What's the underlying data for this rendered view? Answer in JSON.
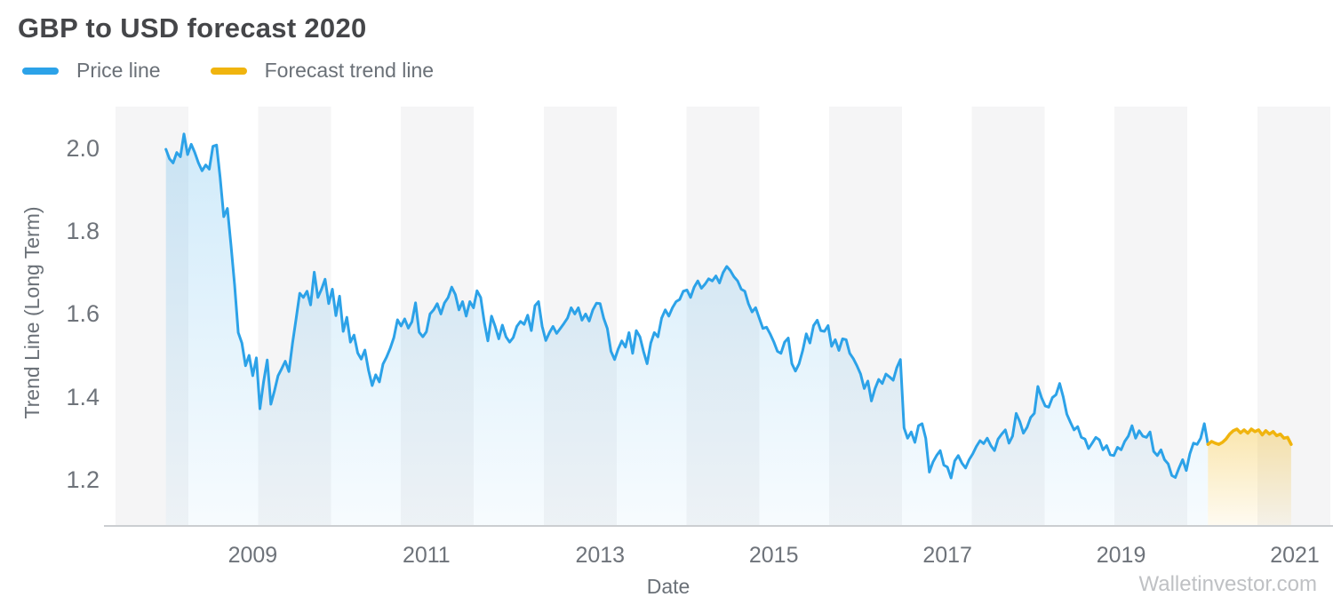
{
  "header": {
    "title": "GBP to USD forecast 2020"
  },
  "legend": [
    {
      "label": "Price line",
      "color": "#2CA2E8"
    },
    {
      "label": "Forecast trend line",
      "color": "#F0B40E"
    }
  ],
  "watermark": "Walletinvestor.com",
  "colors": {
    "price_line": "#2CA2E8",
    "forecast_line": "#F0B40E",
    "band": "#f5f5f6",
    "axis_line": "#cbced1",
    "tick_text": "#6e737a"
  },
  "chart_data": {
    "type": "line",
    "title": "GBP to USD forecast 2020",
    "xlabel": "Date",
    "ylabel": "Trend Line (Long Term)",
    "x_ticks": [
      2009,
      2011,
      2013,
      2015,
      2017,
      2019,
      2021
    ],
    "y_tick_labels": [
      "2.0",
      "1.8",
      "1.6",
      "1.4",
      "1.2"
    ],
    "xlim": [
      2007.42,
      2021.44
    ],
    "ylim": [
      1.088,
      2.101
    ],
    "grid": false,
    "legend_position": "top-left",
    "series": [
      {
        "name": "Price line",
        "color": "#2CA2E8",
        "stroke_width": 3,
        "fill_opacity_top": 0.22,
        "fill_opacity_bottom": 0.04,
        "x_start": 2008.0,
        "x_step": 0.0416667,
        "values": [
          1.998,
          1.975,
          1.965,
          1.99,
          1.98,
          2.035,
          1.985,
          2.01,
          1.99,
          1.965,
          1.946,
          1.96,
          1.95,
          2.005,
          2.008,
          1.93,
          1.835,
          1.855,
          1.765,
          1.67,
          1.555,
          1.53,
          1.475,
          1.5,
          1.451,
          1.494,
          1.371,
          1.436,
          1.489,
          1.382,
          1.414,
          1.451,
          1.468,
          1.486,
          1.461,
          1.53,
          1.59,
          1.65,
          1.64,
          1.655,
          1.622,
          1.701,
          1.64,
          1.66,
          1.684,
          1.625,
          1.66,
          1.596,
          1.643,
          1.558,
          1.592,
          1.532,
          1.549,
          1.506,
          1.491,
          1.513,
          1.464,
          1.427,
          1.453,
          1.436,
          1.479,
          1.496,
          1.517,
          1.543,
          1.586,
          1.571,
          1.588,
          1.566,
          1.581,
          1.627,
          1.556,
          1.545,
          1.557,
          1.6,
          1.61,
          1.625,
          1.6,
          1.627,
          1.64,
          1.665,
          1.647,
          1.61,
          1.63,
          1.595,
          1.63,
          1.615,
          1.656,
          1.64,
          1.58,
          1.535,
          1.595,
          1.57,
          1.54,
          1.573,
          1.545,
          1.532,
          1.543,
          1.57,
          1.582,
          1.575,
          1.597,
          1.56,
          1.62,
          1.63,
          1.57,
          1.536,
          1.555,
          1.57,
          1.553,
          1.565,
          1.577,
          1.59,
          1.615,
          1.6,
          1.615,
          1.585,
          1.6,
          1.583,
          1.61,
          1.626,
          1.625,
          1.59,
          1.565,
          1.51,
          1.49,
          1.515,
          1.535,
          1.52,
          1.555,
          1.505,
          1.56,
          1.545,
          1.51,
          1.48,
          1.53,
          1.555,
          1.545,
          1.59,
          1.61,
          1.595,
          1.615,
          1.63,
          1.635,
          1.655,
          1.658,
          1.64,
          1.665,
          1.68,
          1.662,
          1.672,
          1.685,
          1.68,
          1.692,
          1.675,
          1.7,
          1.715,
          1.705,
          1.69,
          1.68,
          1.66,
          1.655,
          1.625,
          1.605,
          1.615,
          1.59,
          1.565,
          1.568,
          1.552,
          1.533,
          1.51,
          1.505,
          1.532,
          1.542,
          1.48,
          1.462,
          1.48,
          1.512,
          1.552,
          1.53,
          1.572,
          1.585,
          1.56,
          1.558,
          1.572,
          1.522,
          1.538,
          1.512,
          1.54,
          1.538,
          1.505,
          1.492,
          1.475,
          1.455,
          1.42,
          1.438,
          1.39,
          1.42,
          1.442,
          1.432,
          1.455,
          1.448,
          1.44,
          1.47,
          1.49,
          1.325,
          1.3,
          1.315,
          1.29,
          1.33,
          1.335,
          1.3,
          1.218,
          1.242,
          1.258,
          1.27,
          1.235,
          1.23,
          1.204,
          1.245,
          1.258,
          1.24,
          1.228,
          1.248,
          1.262,
          1.28,
          1.294,
          1.287,
          1.3,
          1.282,
          1.27,
          1.298,
          1.31,
          1.32,
          1.288,
          1.305,
          1.36,
          1.34,
          1.312,
          1.326,
          1.35,
          1.36,
          1.425,
          1.398,
          1.378,
          1.375,
          1.398,
          1.405,
          1.432,
          1.4,
          1.358,
          1.338,
          1.32,
          1.328,
          1.302,
          1.298,
          1.275,
          1.288,
          1.302,
          1.296,
          1.272,
          1.282,
          1.26,
          1.258,
          1.278,
          1.272,
          1.292,
          1.305,
          1.33,
          1.3,
          1.318,
          1.305,
          1.302,
          1.315,
          1.268,
          1.258,
          1.272,
          1.248,
          1.238,
          1.21,
          1.205,
          1.228,
          1.248,
          1.222,
          1.262,
          1.288,
          1.285,
          1.3,
          1.335,
          1.285
        ]
      },
      {
        "name": "Forecast trend line",
        "color": "#F0B40E",
        "stroke_width": 3.5,
        "fill_opacity_top": 0.33,
        "fill_opacity_bottom": 0.06,
        "x_start": 2020.0,
        "x_step": 0.0416667,
        "values": [
          1.285,
          1.292,
          1.288,
          1.285,
          1.29,
          1.298,
          1.31,
          1.318,
          1.322,
          1.313,
          1.32,
          1.312,
          1.322,
          1.316,
          1.32,
          1.308,
          1.318,
          1.31,
          1.316,
          1.306,
          1.31,
          1.3,
          1.302,
          1.285
        ]
      }
    ]
  }
}
